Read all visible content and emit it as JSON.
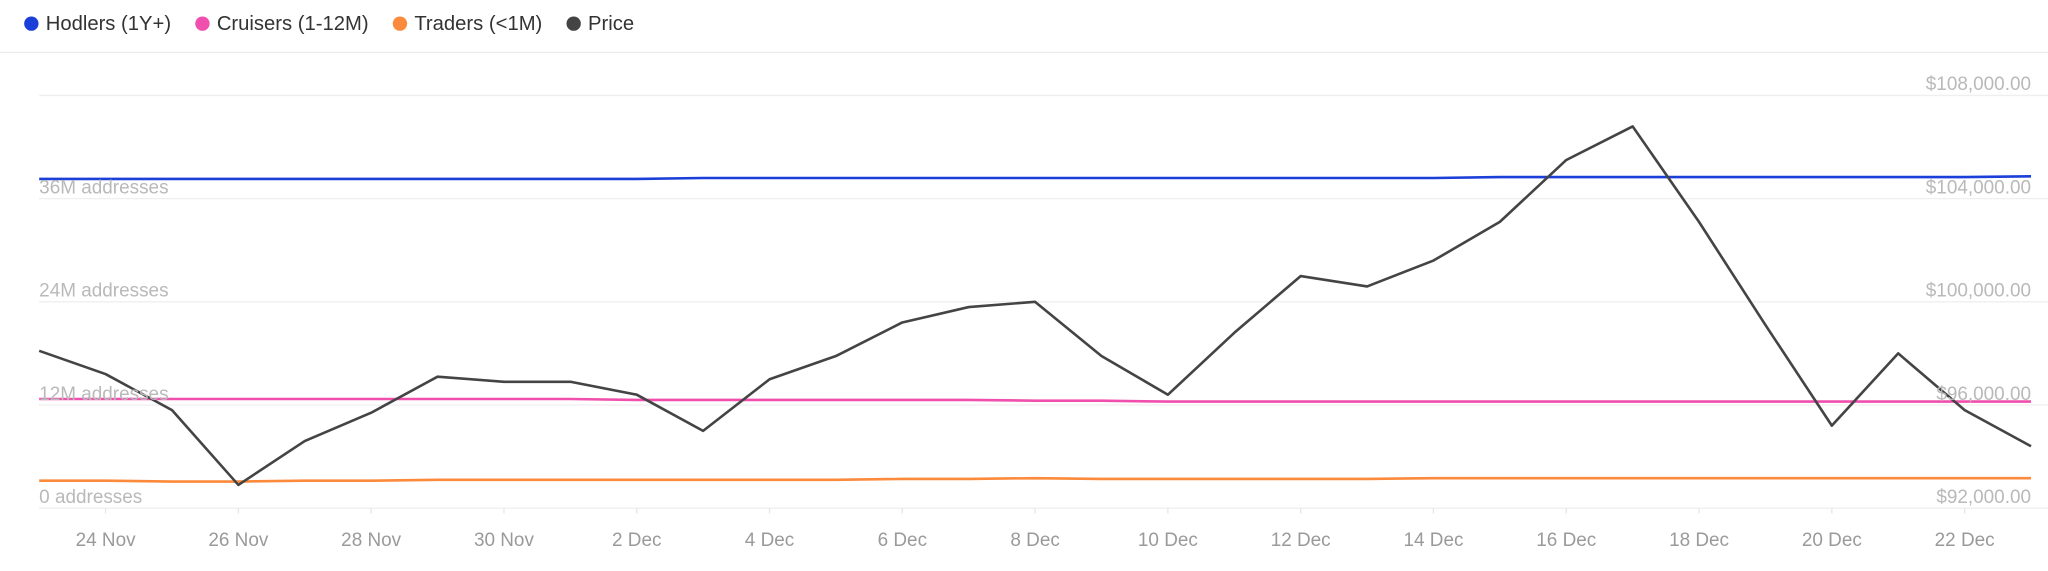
{
  "chart_data": {
    "type": "line",
    "categories": [
      null,
      "24 Nov",
      null,
      "26 Nov",
      null,
      "28 Nov",
      null,
      "30 Nov",
      null,
      "2 Dec",
      null,
      "4 Dec",
      null,
      "6 Dec",
      null,
      "8 Dec",
      null,
      "10 Dec",
      null,
      "12 Dec",
      null,
      "14 Dec",
      null,
      "16 Dec",
      null,
      "18 Dec",
      null,
      "20 Dec",
      null,
      "22 Dec",
      null
    ],
    "series": [
      {
        "name": "Hodlers (1Y+)",
        "color": "#1b3fd9",
        "values": [
          38300000,
          38300000,
          38300000,
          38300000,
          38300000,
          38300000,
          38300000,
          38300000,
          38300000,
          38300000,
          38400000,
          38400000,
          38400000,
          38400000,
          38400000,
          38400000,
          38400000,
          38400000,
          38400000,
          38400000,
          38400000,
          38400000,
          38500000,
          38500000,
          38500000,
          38500000,
          38500000,
          38500000,
          38500000,
          38500000,
          38600000
        ]
      },
      {
        "name": "Cruisers (1-12M)",
        "color": "#f04fae",
        "values": [
          12700000,
          12700000,
          12700000,
          12700000,
          12700000,
          12700000,
          12700000,
          12700000,
          12700000,
          12600000,
          12600000,
          12600000,
          12600000,
          12600000,
          12600000,
          12500000,
          12500000,
          12400000,
          12400000,
          12400000,
          12400000,
          12400000,
          12400000,
          12400000,
          12400000,
          12400000,
          12400000,
          12400000,
          12400000,
          12400000,
          12400000
        ]
      },
      {
        "name": "Traders (<1M)",
        "color": "#fb8a3c",
        "values": [
          3200000,
          3200000,
          3100000,
          3100000,
          3200000,
          3200000,
          3300000,
          3300000,
          3300000,
          3300000,
          3300000,
          3300000,
          3300000,
          3400000,
          3400000,
          3500000,
          3400000,
          3400000,
          3400000,
          3400000,
          3400000,
          3500000,
          3500000,
          3500000,
          3500000,
          3500000,
          3500000,
          3500000,
          3500000,
          3500000,
          3500000
        ]
      },
      {
        "name": "Price",
        "color": "#444444",
        "axis": "y2",
        "values": [
          98100,
          97200,
          95800,
          92900,
          94600,
          95700,
          97100,
          96900,
          96900,
          96400,
          95000,
          97000,
          97900,
          99200,
          99800,
          100000,
          97900,
          96400,
          98800,
          101000,
          100600,
          101600,
          103100,
          105500,
          106800,
          103100,
          99100,
          95200,
          98000,
          95800,
          94400
        ]
      }
    ],
    "ylim": [
      0,
      48000000
    ],
    "yticks": [
      {
        "value": 0,
        "label": "0 addresses"
      },
      {
        "value": 12000000,
        "label": "12M addresses"
      },
      {
        "value": 24000000,
        "label": "24M addresses"
      },
      {
        "value": 36000000,
        "label": "36M addresses"
      }
    ],
    "y2lim": [
      92000,
      108000
    ],
    "y2ticks": [
      {
        "value": 92000,
        "label": "$92,000.00"
      },
      {
        "value": 96000,
        "label": "$96,000.00"
      },
      {
        "value": 100000,
        "label": "$100,000.00"
      },
      {
        "value": 104000,
        "label": "$104,000.00"
      },
      {
        "value": 108000,
        "label": "$108,000.00"
      }
    ],
    "grid": true,
    "legend": "top-left"
  }
}
